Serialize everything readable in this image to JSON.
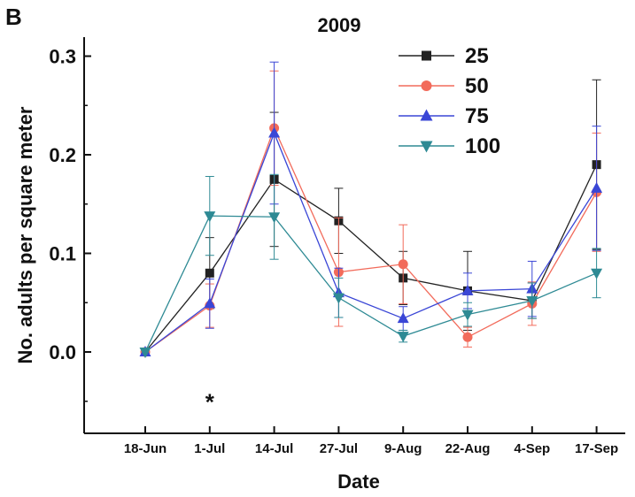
{
  "panel_label": "B",
  "chart_data": {
    "type": "line",
    "title": "2009",
    "xlabel": "Date",
    "ylabel": "No. adults per square meter",
    "categories": [
      "18-Jun",
      "1-Jul",
      "14-Jul",
      "27-Jul",
      "9-Aug",
      "22-Aug",
      "4-Sep",
      "17-Sep"
    ],
    "ylim": [
      -0.08,
      0.32
    ],
    "yticks": [
      "0.0",
      "0.1",
      "0.2",
      "0.3"
    ],
    "grid": false,
    "legend_position": "top-right",
    "annotations": [
      {
        "text": "*",
        "category": "1-Jul",
        "y": -0.048
      }
    ],
    "series": [
      {
        "name": "25",
        "color": "#222222",
        "marker": "square",
        "values": [
          0.0,
          0.08,
          0.175,
          0.133,
          0.075,
          0.062,
          0.052,
          0.19
        ],
        "errors": [
          0.0,
          0.036,
          0.068,
          0.033,
          0.027,
          0.04,
          0.018,
          0.086
        ]
      },
      {
        "name": "50",
        "color": "#f26b5b",
        "marker": "circle",
        "values": [
          0.0,
          0.047,
          0.227,
          0.081,
          0.089,
          0.015,
          0.049,
          0.162
        ],
        "errors": [
          0.0,
          0.022,
          0.058,
          0.055,
          0.04,
          0.01,
          0.022,
          0.06
        ]
      },
      {
        "name": "75",
        "color": "#3a46d6",
        "marker": "triangle-up",
        "values": [
          0.0,
          0.049,
          0.222,
          0.06,
          0.034,
          0.062,
          0.064,
          0.166
        ],
        "errors": [
          0.0,
          0.025,
          0.072,
          0.025,
          0.012,
          0.018,
          0.028,
          0.063
        ]
      },
      {
        "name": "100",
        "color": "#2e8a94",
        "marker": "triangle-down",
        "values": [
          0.0,
          0.138,
          0.137,
          0.055,
          0.016,
          0.038,
          0.052,
          0.08
        ],
        "errors": [
          0.0,
          0.04,
          0.043,
          0.02,
          0.006,
          0.012,
          0.018,
          0.025
        ]
      }
    ]
  }
}
